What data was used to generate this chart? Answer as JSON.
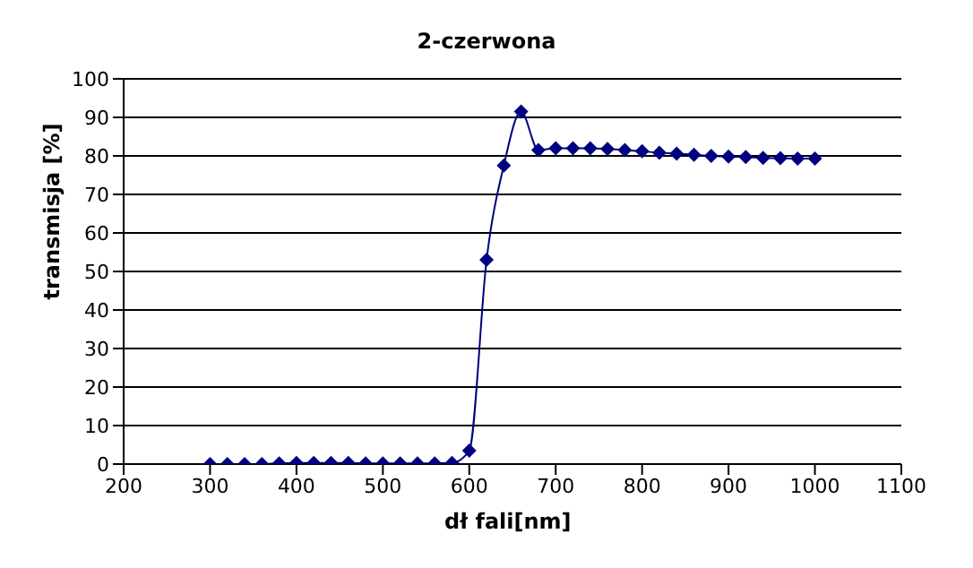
{
  "chart_data": {
    "type": "line",
    "title": "2-czerwona",
    "xlabel": "dł fali[nm]",
    "ylabel": "transmisja [%]",
    "x": [
      300,
      320,
      340,
      360,
      380,
      400,
      420,
      440,
      460,
      480,
      500,
      520,
      540,
      560,
      580,
      600,
      620,
      640,
      660,
      680,
      700,
      720,
      740,
      760,
      780,
      800,
      820,
      840,
      860,
      880,
      900,
      920,
      940,
      960,
      980,
      1000
    ],
    "series": [
      {
        "color": "#000080",
        "values": [
          0,
          0,
          0,
          0,
          0.2,
          0.3,
          0.3,
          0.3,
          0.3,
          0.2,
          0.2,
          0.2,
          0.2,
          0.2,
          0.3,
          3.5,
          53,
          77.5,
          91.5,
          81.5,
          82,
          82,
          82,
          81.8,
          81.5,
          81.2,
          80.8,
          80.6,
          80.3,
          80,
          79.8,
          79.7,
          79.5,
          79.4,
          79.3,
          79.3
        ]
      }
    ],
    "xlim": [
      200,
      1100
    ],
    "xticks": [
      200,
      300,
      400,
      500,
      600,
      700,
      800,
      900,
      1000,
      1100
    ],
    "ylim": [
      0,
      100
    ],
    "yticks": [
      0,
      10,
      20,
      30,
      40,
      50,
      60,
      70,
      80,
      90,
      100
    ],
    "grid": "y",
    "marker": "diamond",
    "line_style": "solid"
  }
}
